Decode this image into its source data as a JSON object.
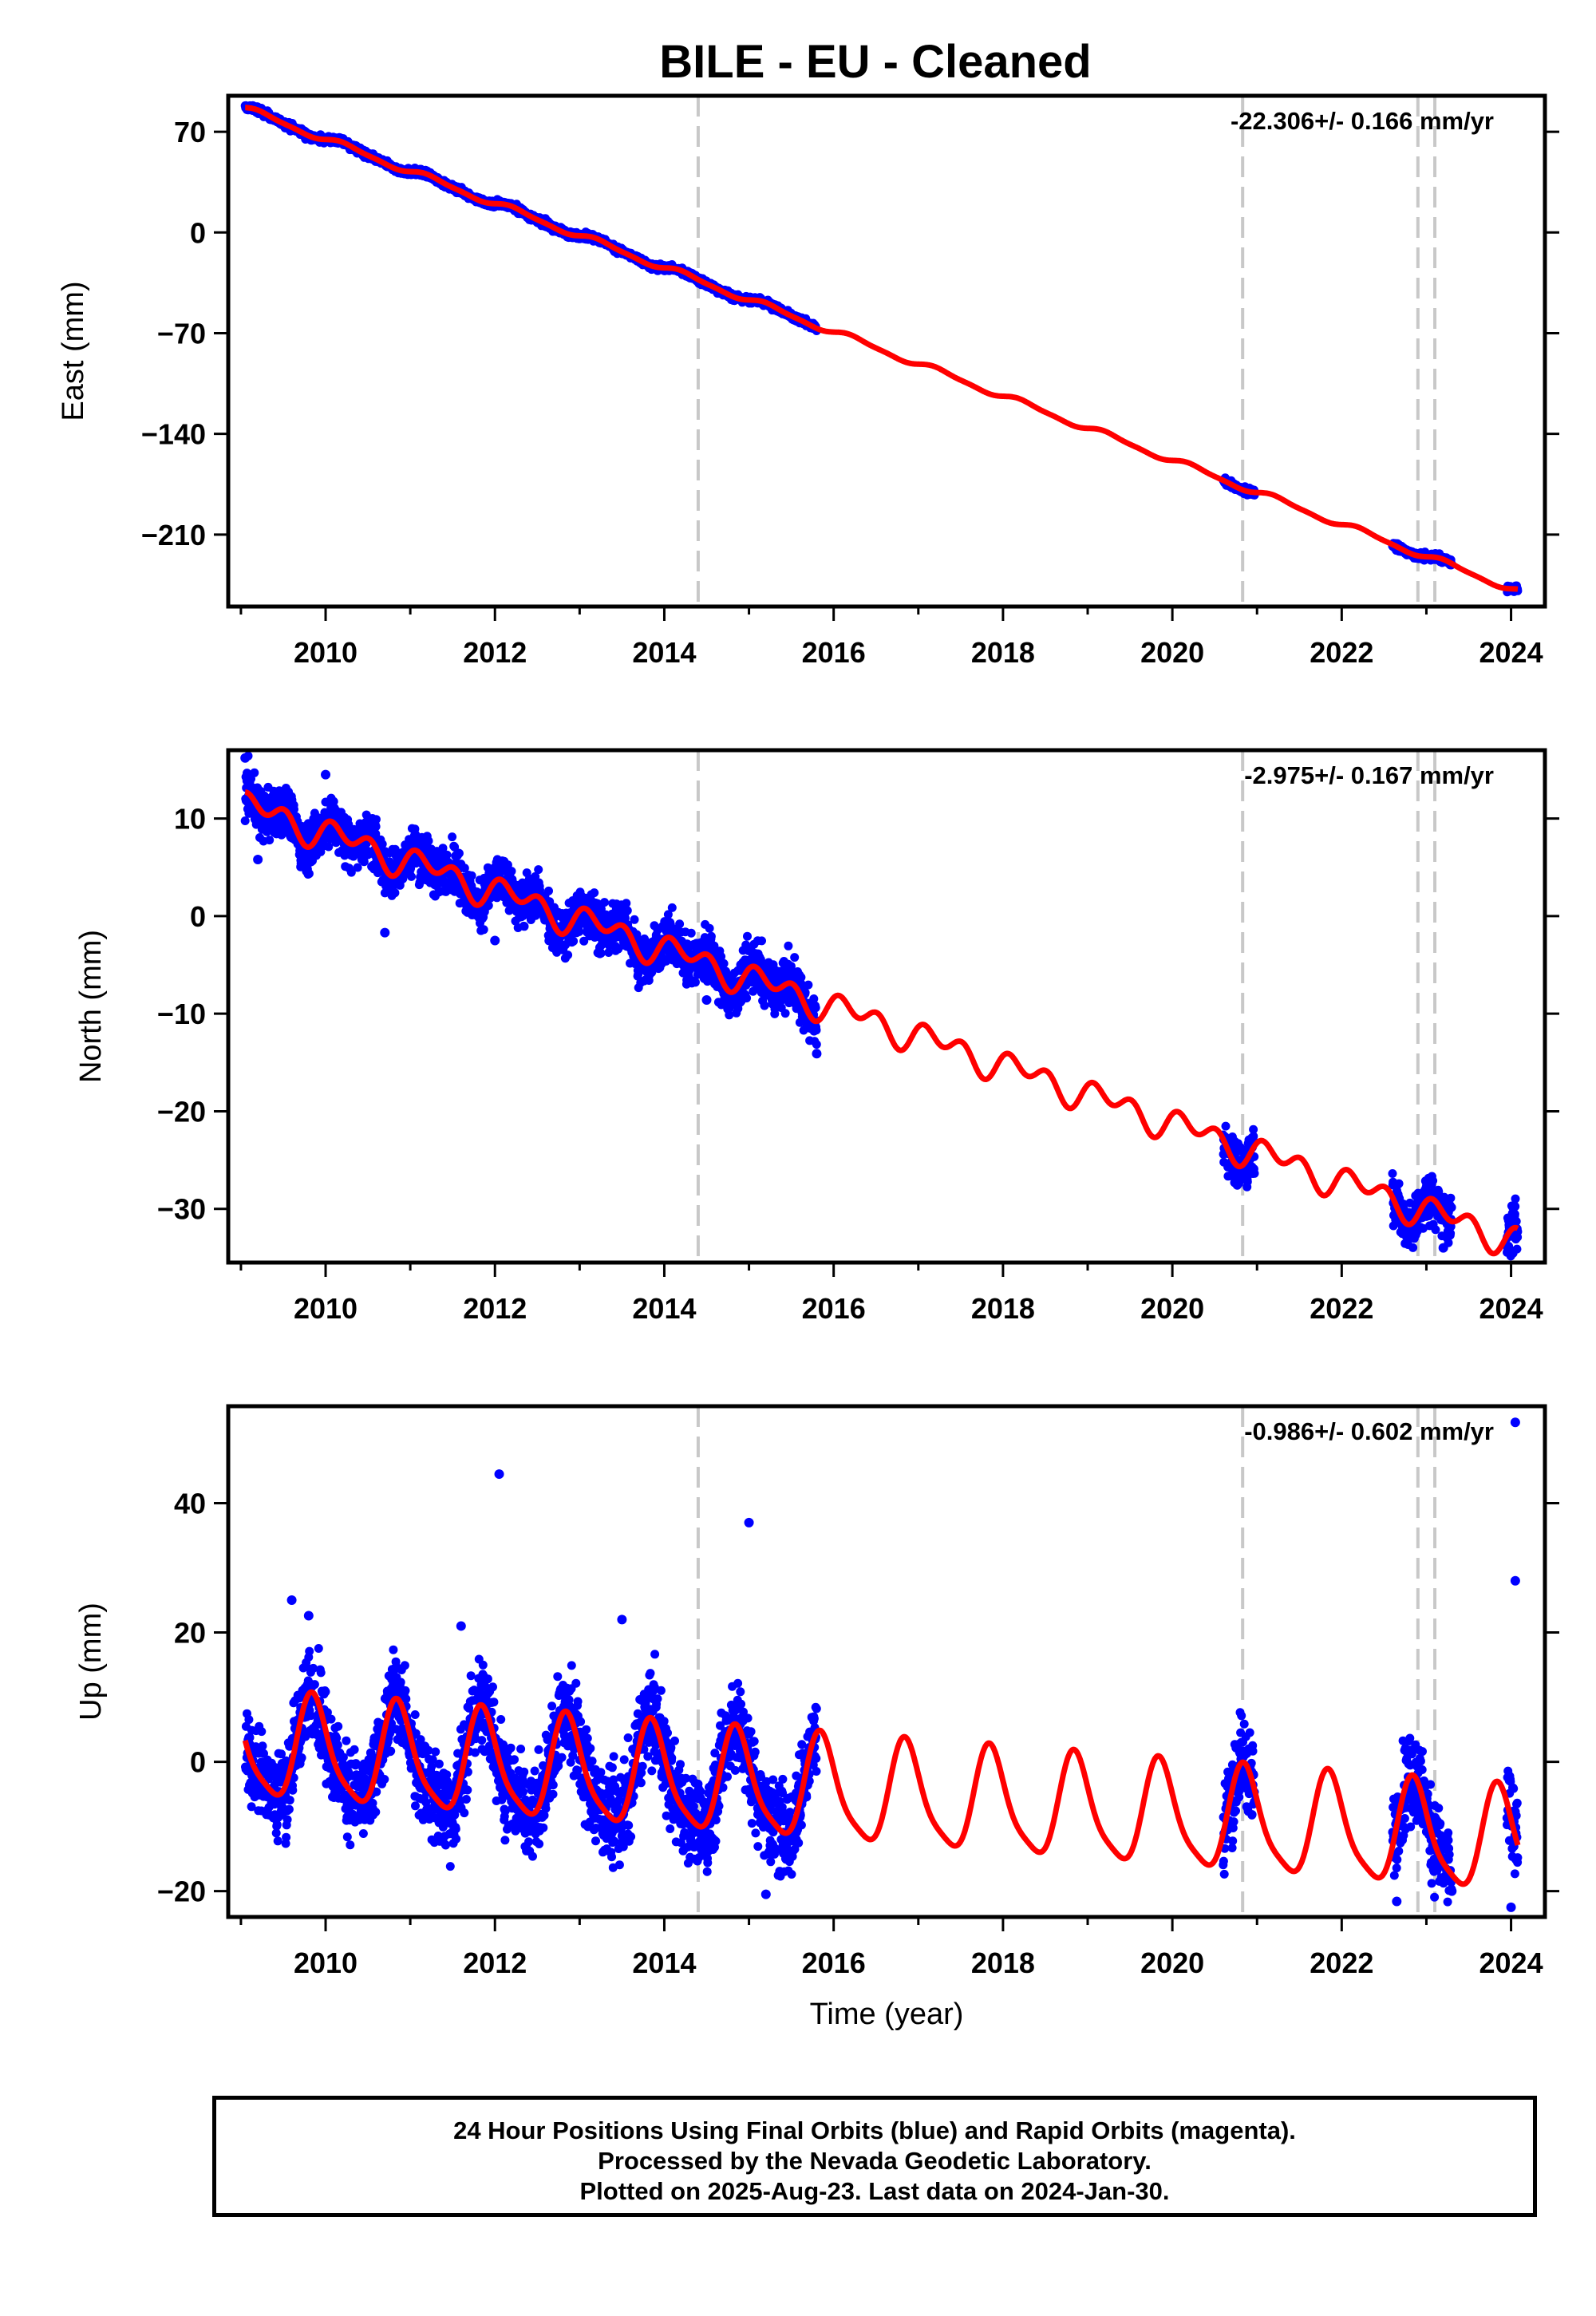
{
  "title": "BILE  - EU - Cleaned",
  "footer": {
    "line1": "24 Hour Positions Using Final Orbits (blue) and Rapid Orbits (magenta).",
    "line2": "Processed by the Nevada Geodetic Laboratory.",
    "line3": "Plotted on 2025-Aug-23. Last data on 2024-Jan-30."
  },
  "colors": {
    "data": "#0000ff",
    "model": "#ff0000",
    "steps": "#c8c8c8",
    "frame": "#000000"
  },
  "chart_data": [
    {
      "type": "scatter",
      "component": "east",
      "ylabel": "East (mm)",
      "xlabel": "",
      "xlim": [
        2008.85,
        2024.4
      ],
      "ylim": [
        -260,
        95
      ],
      "xticks": [
        2010,
        2012,
        2014,
        2016,
        2018,
        2020,
        2022,
        2024
      ],
      "yticks": [
        70,
        0,
        -70,
        -140,
        -210
      ],
      "rate_label": "-22.306+/- 0.166 mm/yr",
      "steps": [
        2014.4,
        2020.83,
        2022.9,
        2023.1
      ],
      "data_spans": [
        [
          2009.05,
          2015.8
        ],
        [
          2020.6,
          2020.97
        ],
        [
          2022.6,
          2023.3
        ],
        [
          2023.95,
          2024.08
        ]
      ],
      "data_scatter": 1.2,
      "outliers": [],
      "model": {
        "velocity": -22.306,
        "offset": 86,
        "t0": 2009.05,
        "annual": [
          1.9,
          0.6
        ],
        "semiannual": [
          0.6,
          0.2
        ],
        "step_offsets": [
          0,
          0,
          0,
          0
        ]
      }
    },
    {
      "type": "scatter",
      "component": "north",
      "ylabel": "North (mm)",
      "xlabel": "",
      "xlim": [
        2008.85,
        2024.4
      ],
      "ylim": [
        -35.5,
        17
      ],
      "xticks": [
        2010,
        2012,
        2014,
        2016,
        2018,
        2020,
        2022,
        2024
      ],
      "yticks": [
        10,
        0,
        -10,
        -20,
        -30
      ],
      "rate_label": "-2.975+/- 0.167 mm/yr",
      "steps": [
        2014.4,
        2020.83,
        2022.9,
        2023.1
      ],
      "data_spans": [
        [
          2009.05,
          2015.8
        ],
        [
          2020.6,
          2020.97
        ],
        [
          2022.6,
          2023.3
        ],
        [
          2023.95,
          2024.08
        ]
      ],
      "data_scatter": 1.3,
      "outliers": [
        [
          2009.05,
          16.2
        ],
        [
          2009.2,
          5.8
        ],
        [
          2009.7,
          6.7
        ],
        [
          2010.0,
          14.5
        ],
        [
          2010.7,
          -1.7
        ],
        [
          2012.0,
          -2.5
        ],
        [
          2014.5,
          -8.6
        ],
        [
          2015.8,
          -14.1
        ],
        [
          2023.2,
          -34.0
        ]
      ],
      "model": {
        "velocity": -2.975,
        "offset": 11.3,
        "t0": 2009.05,
        "annual": [
          0.9,
          0.3
        ],
        "semiannual": [
          -0.2,
          1.1
        ],
        "step_offsets": [
          0,
          0,
          0,
          0
        ]
      }
    },
    {
      "type": "scatter",
      "component": "up",
      "ylabel": "Up (mm)",
      "xlabel": "Time (year)",
      "xlim": [
        2008.85,
        2024.4
      ],
      "ylim": [
        -24,
        55
      ],
      "xticks": [
        2010,
        2012,
        2014,
        2016,
        2018,
        2020,
        2022,
        2024
      ],
      "yticks": [
        40,
        20,
        0,
        -20
      ],
      "rate_label": "-0.986+/- 0.602 mm/yr",
      "steps": [
        2014.4,
        2020.83,
        2022.9,
        2023.1
      ],
      "data_spans": [
        [
          2009.05,
          2015.8
        ],
        [
          2020.6,
          2020.97
        ],
        [
          2022.6,
          2023.3
        ],
        [
          2023.95,
          2024.08
        ]
      ],
      "data_scatter": 3.6,
      "outliers": [
        [
          2009.6,
          25
        ],
        [
          2009.8,
          22.6
        ],
        [
          2011.6,
          21
        ],
        [
          2012.05,
          44.5
        ],
        [
          2013.5,
          22
        ],
        [
          2015.0,
          37
        ],
        [
          2024.05,
          52.5
        ],
        [
          2024.05,
          28
        ],
        [
          2015.2,
          -20.5
        ],
        [
          2022.65,
          -21.6
        ],
        [
          2023.3,
          -20
        ],
        [
          2024.0,
          -22.5
        ]
      ],
      "model": {
        "velocity": -0.986,
        "offset": 2.2,
        "t0": 2009.05,
        "annual": [
          -7.3,
          2.8
        ],
        "semiannual": [
          -0.2,
          -1.7
        ],
        "step_offsets": [
          0,
          0,
          0,
          0
        ]
      }
    }
  ]
}
